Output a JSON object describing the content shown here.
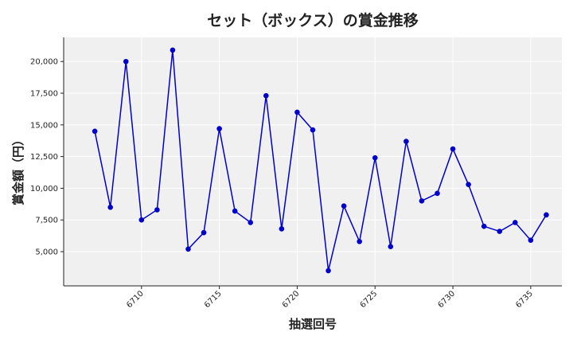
{
  "chart_data": {
    "type": "line",
    "title": "セット（ボックス）の賞金推移",
    "xlabel": "抽選回号",
    "ylabel": "賞金額（円）",
    "x": [
      6707,
      6708,
      6709,
      6710,
      6711,
      6712,
      6713,
      6714,
      6715,
      6716,
      6717,
      6718,
      6719,
      6720,
      6721,
      6722,
      6723,
      6724,
      6725,
      6726,
      6727,
      6728,
      6729,
      6730,
      6731,
      6732,
      6733,
      6734,
      6735,
      6736
    ],
    "series": [
      {
        "values": [
          14500,
          8500,
          20000,
          7500,
          8300,
          20900,
          5200,
          6500,
          14700,
          8200,
          7300,
          17300,
          6800,
          16000,
          14600,
          3500,
          8600,
          5800,
          12400,
          5400,
          13700,
          9000,
          9600,
          13100,
          10300,
          7000,
          6600,
          7300,
          5900,
          7900
        ],
        "color": "#0000cc"
      }
    ],
    "xlim": [
      6705,
      6737
    ],
    "ylim": [
      2300,
      21900
    ],
    "xticks": [
      6710,
      6715,
      6720,
      6725,
      6730,
      6735
    ],
    "yticks": [
      5000,
      7500,
      10000,
      12500,
      15000,
      17500,
      20000
    ],
    "ytick_labels": [
      "5,000",
      "7,500",
      "10,000",
      "12,500",
      "15,000",
      "17,500",
      "20,000"
    ],
    "grid": true,
    "background": "#f0f0f0"
  }
}
